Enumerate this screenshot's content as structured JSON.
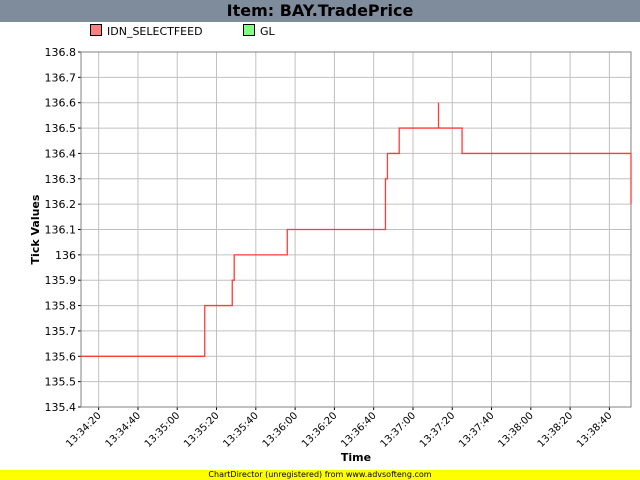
{
  "header": {
    "title": "Item: BAY.TradePrice"
  },
  "footer": {
    "text": "ChartDirector (unregistered) from www.advsofteng.com"
  },
  "colors": {
    "title_bg": "#7f8c9c",
    "series_line": "#ff3b3b",
    "gl": "#80ff80",
    "footer_bg": "#ffff00",
    "grid": "#c0c0c0"
  },
  "chart_data": {
    "type": "line",
    "title": "",
    "xlabel": "Time",
    "ylabel": "Tick Values",
    "ylim": [
      135.4,
      136.8
    ],
    "y_ticks": [
      "135.4",
      "135.5",
      "135.6",
      "135.7",
      "135.8",
      "135.9",
      "136",
      "136.1",
      "136.2",
      "136.3",
      "136.4",
      "136.5",
      "136.6",
      "136.7",
      "136.8"
    ],
    "x_ticks": [
      "13:34:20",
      "13:34:40",
      "13:35:00",
      "13:35:20",
      "13:35:40",
      "13:36:00",
      "13:36:20",
      "13:36:40",
      "13:37:00",
      "13:37:20",
      "13:37:40",
      "13:38:00",
      "13:38:20",
      "13:38:40"
    ],
    "xlim": [
      "13:34:11",
      "13:38:51"
    ],
    "grid": true,
    "legend_position": "top",
    "series": [
      {
        "name": "IDN_SELECTFEED",
        "color": "#ff8080",
        "step": true,
        "x": [
          "13:34:11",
          "13:35:14",
          "13:35:14",
          "13:35:28",
          "13:35:28",
          "13:35:29",
          "13:35:29",
          "13:35:56",
          "13:35:56",
          "13:36:46",
          "13:36:46",
          "13:36:47",
          "13:36:47",
          "13:36:53",
          "13:36:53",
          "13:37:13",
          "13:37:13",
          "13:37:13",
          "13:37:13",
          "13:37:13",
          "13:37:13",
          "13:37:25",
          "13:37:25",
          "13:38:51",
          "13:38:51"
        ],
        "y": [
          135.6,
          135.6,
          135.8,
          135.8,
          135.9,
          135.9,
          136.0,
          136.0,
          136.1,
          136.1,
          136.3,
          136.3,
          136.4,
          136.4,
          136.5,
          136.5,
          136.6,
          136.6,
          136.5,
          136.6,
          136.5,
          136.5,
          136.4,
          136.4,
          136.2
        ]
      },
      {
        "name": "GL",
        "color": "#80ff80",
        "x": [],
        "y": []
      }
    ]
  }
}
